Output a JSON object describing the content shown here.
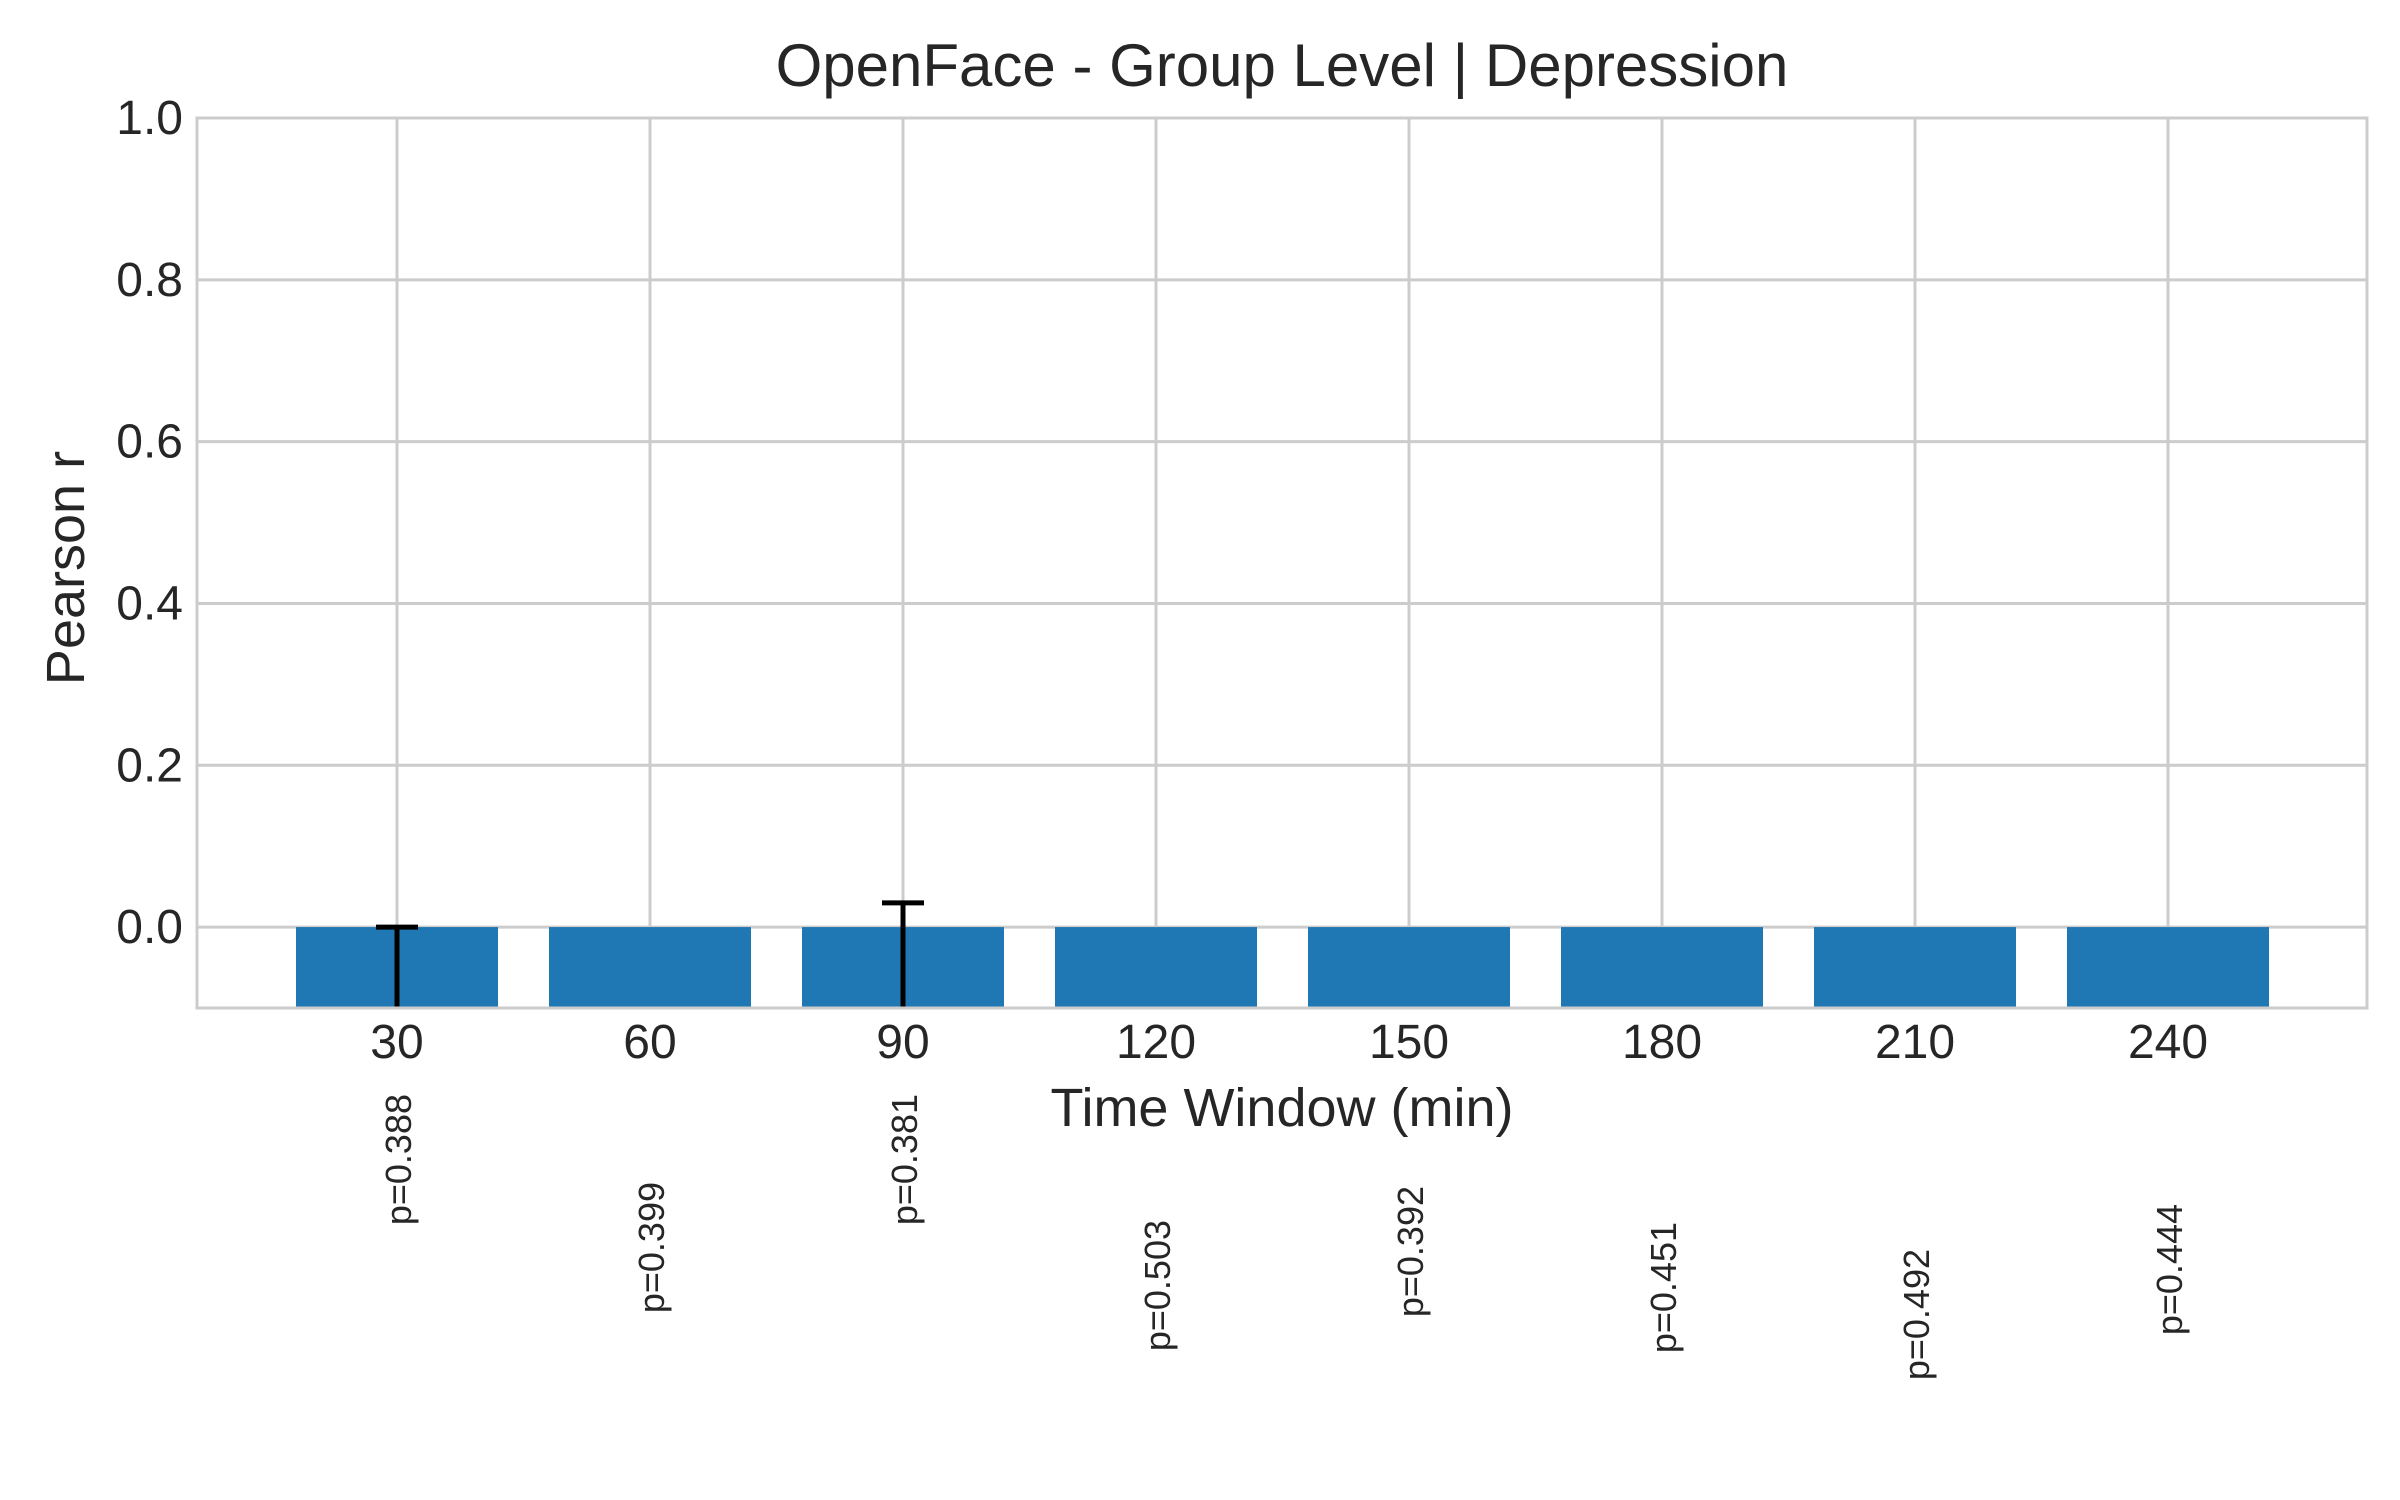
{
  "chart_data": {
    "type": "bar",
    "title": "OpenFace - Group Level | Depression",
    "xlabel": "Time Window (min)",
    "ylabel": "Pearson r",
    "categories": [
      "30",
      "60",
      "90",
      "120",
      "150",
      "180",
      "210",
      "240"
    ],
    "values": [
      -0.1,
      -0.1,
      -0.1,
      -0.1,
      -0.1,
      -0.1,
      -0.1,
      -0.1
    ],
    "error_upper": [
      0.0,
      null,
      0.03,
      null,
      null,
      null,
      null,
      null
    ],
    "p_values": [
      "p=0.388",
      "p=0.399",
      "p=0.381",
      "p=0.503",
      "p=0.392",
      "p=0.451",
      "p=0.492",
      "p=0.444"
    ],
    "ylim": [
      -0.1,
      1.0
    ],
    "yticks": [
      "0.0",
      "0.2",
      "0.4",
      "0.6",
      "0.8",
      "1.0"
    ],
    "grid": true,
    "colors": {
      "bar": "#1f77b4",
      "grid": "#cccccc",
      "errorbar": "#000000",
      "text": "#262626"
    }
  }
}
